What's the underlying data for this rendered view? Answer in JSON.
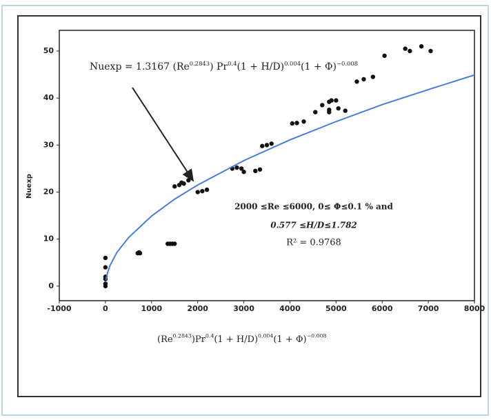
{
  "chart_data": {
    "type": "scatter",
    "ylabel": "Nuexp",
    "xlabel": [
      [
        "(Re",
        "0.2843"
      ],
      [
        ")Pr",
        "0.4"
      ],
      [
        "(1 + H/D)",
        "0.004"
      ],
      [
        "(1 + Φ)",
        "−0.008"
      ]
    ],
    "equation": [
      [
        "Nuexp = 1.3167 (Re",
        "0.2843"
      ],
      [
        ") Pr",
        "0.4"
      ],
      [
        "(1 + H/D)",
        "0.004"
      ],
      [
        "(1 + Φ)",
        "−0.008"
      ]
    ],
    "notes": [
      "2000 ≤Re ≤6000, 0≤ Φ≤0.1 % and",
      "0.577 ≤H/D≤1.782",
      "R² = 0.9768"
    ],
    "xlim": [
      -1000,
      8000
    ],
    "xticks": [
      -1000,
      0,
      1000,
      2000,
      3000,
      4000,
      5000,
      6000,
      7000,
      8000
    ],
    "ylim": [
      -3.1,
      54.4
    ],
    "yticks": [
      0,
      10,
      20,
      30,
      40,
      50
    ],
    "series": [
      {
        "mode": "markers",
        "color": "#111111",
        "x": [
          0,
          0,
          0,
          0,
          0,
          0,
          700,
          730,
          750,
          1350,
          1400,
          1450,
          1500,
          1500,
          1600,
          1650,
          1700,
          1800,
          2000,
          2100,
          2200,
          2750,
          2850,
          2950,
          3000,
          3250,
          3350,
          3400,
          3500,
          3600,
          4050,
          4150,
          4300,
          4550,
          4700,
          4850,
          4850,
          4850,
          4900,
          5000,
          5050,
          5200,
          5450,
          5600,
          5800,
          6050,
          6500,
          6600,
          6850,
          7050
        ],
        "values": [
          6,
          4,
          2,
          1.5,
          0.5,
          0,
          7,
          7.2,
          7,
          9,
          9,
          9,
          9,
          21.2,
          21.5,
          22,
          21.8,
          22.5,
          20,
          20.2,
          20.5,
          25,
          25.2,
          25,
          24.3,
          24.5,
          24.8,
          29.8,
          30,
          30.3,
          34.6,
          34.7,
          35,
          37,
          38.5,
          37,
          37.5,
          39.2,
          39.5,
          39.5,
          37.8,
          37.3,
          43.5,
          44,
          44.5,
          49,
          50.5,
          50,
          51,
          50
        ]
      },
      {
        "mode": "line",
        "color": "#4a7bdc",
        "x": [
          10,
          50,
          100,
          250,
          500,
          1000,
          1500,
          2000,
          3000,
          4000,
          5000,
          6000,
          7000,
          8000
        ],
        "values": [
          1.3,
          3.0,
          4.4,
          7.2,
          10.3,
          14.9,
          18.5,
          21.5,
          26.7,
          31.1,
          35.0,
          38.6,
          41.8,
          44.9
        ]
      }
    ]
  }
}
